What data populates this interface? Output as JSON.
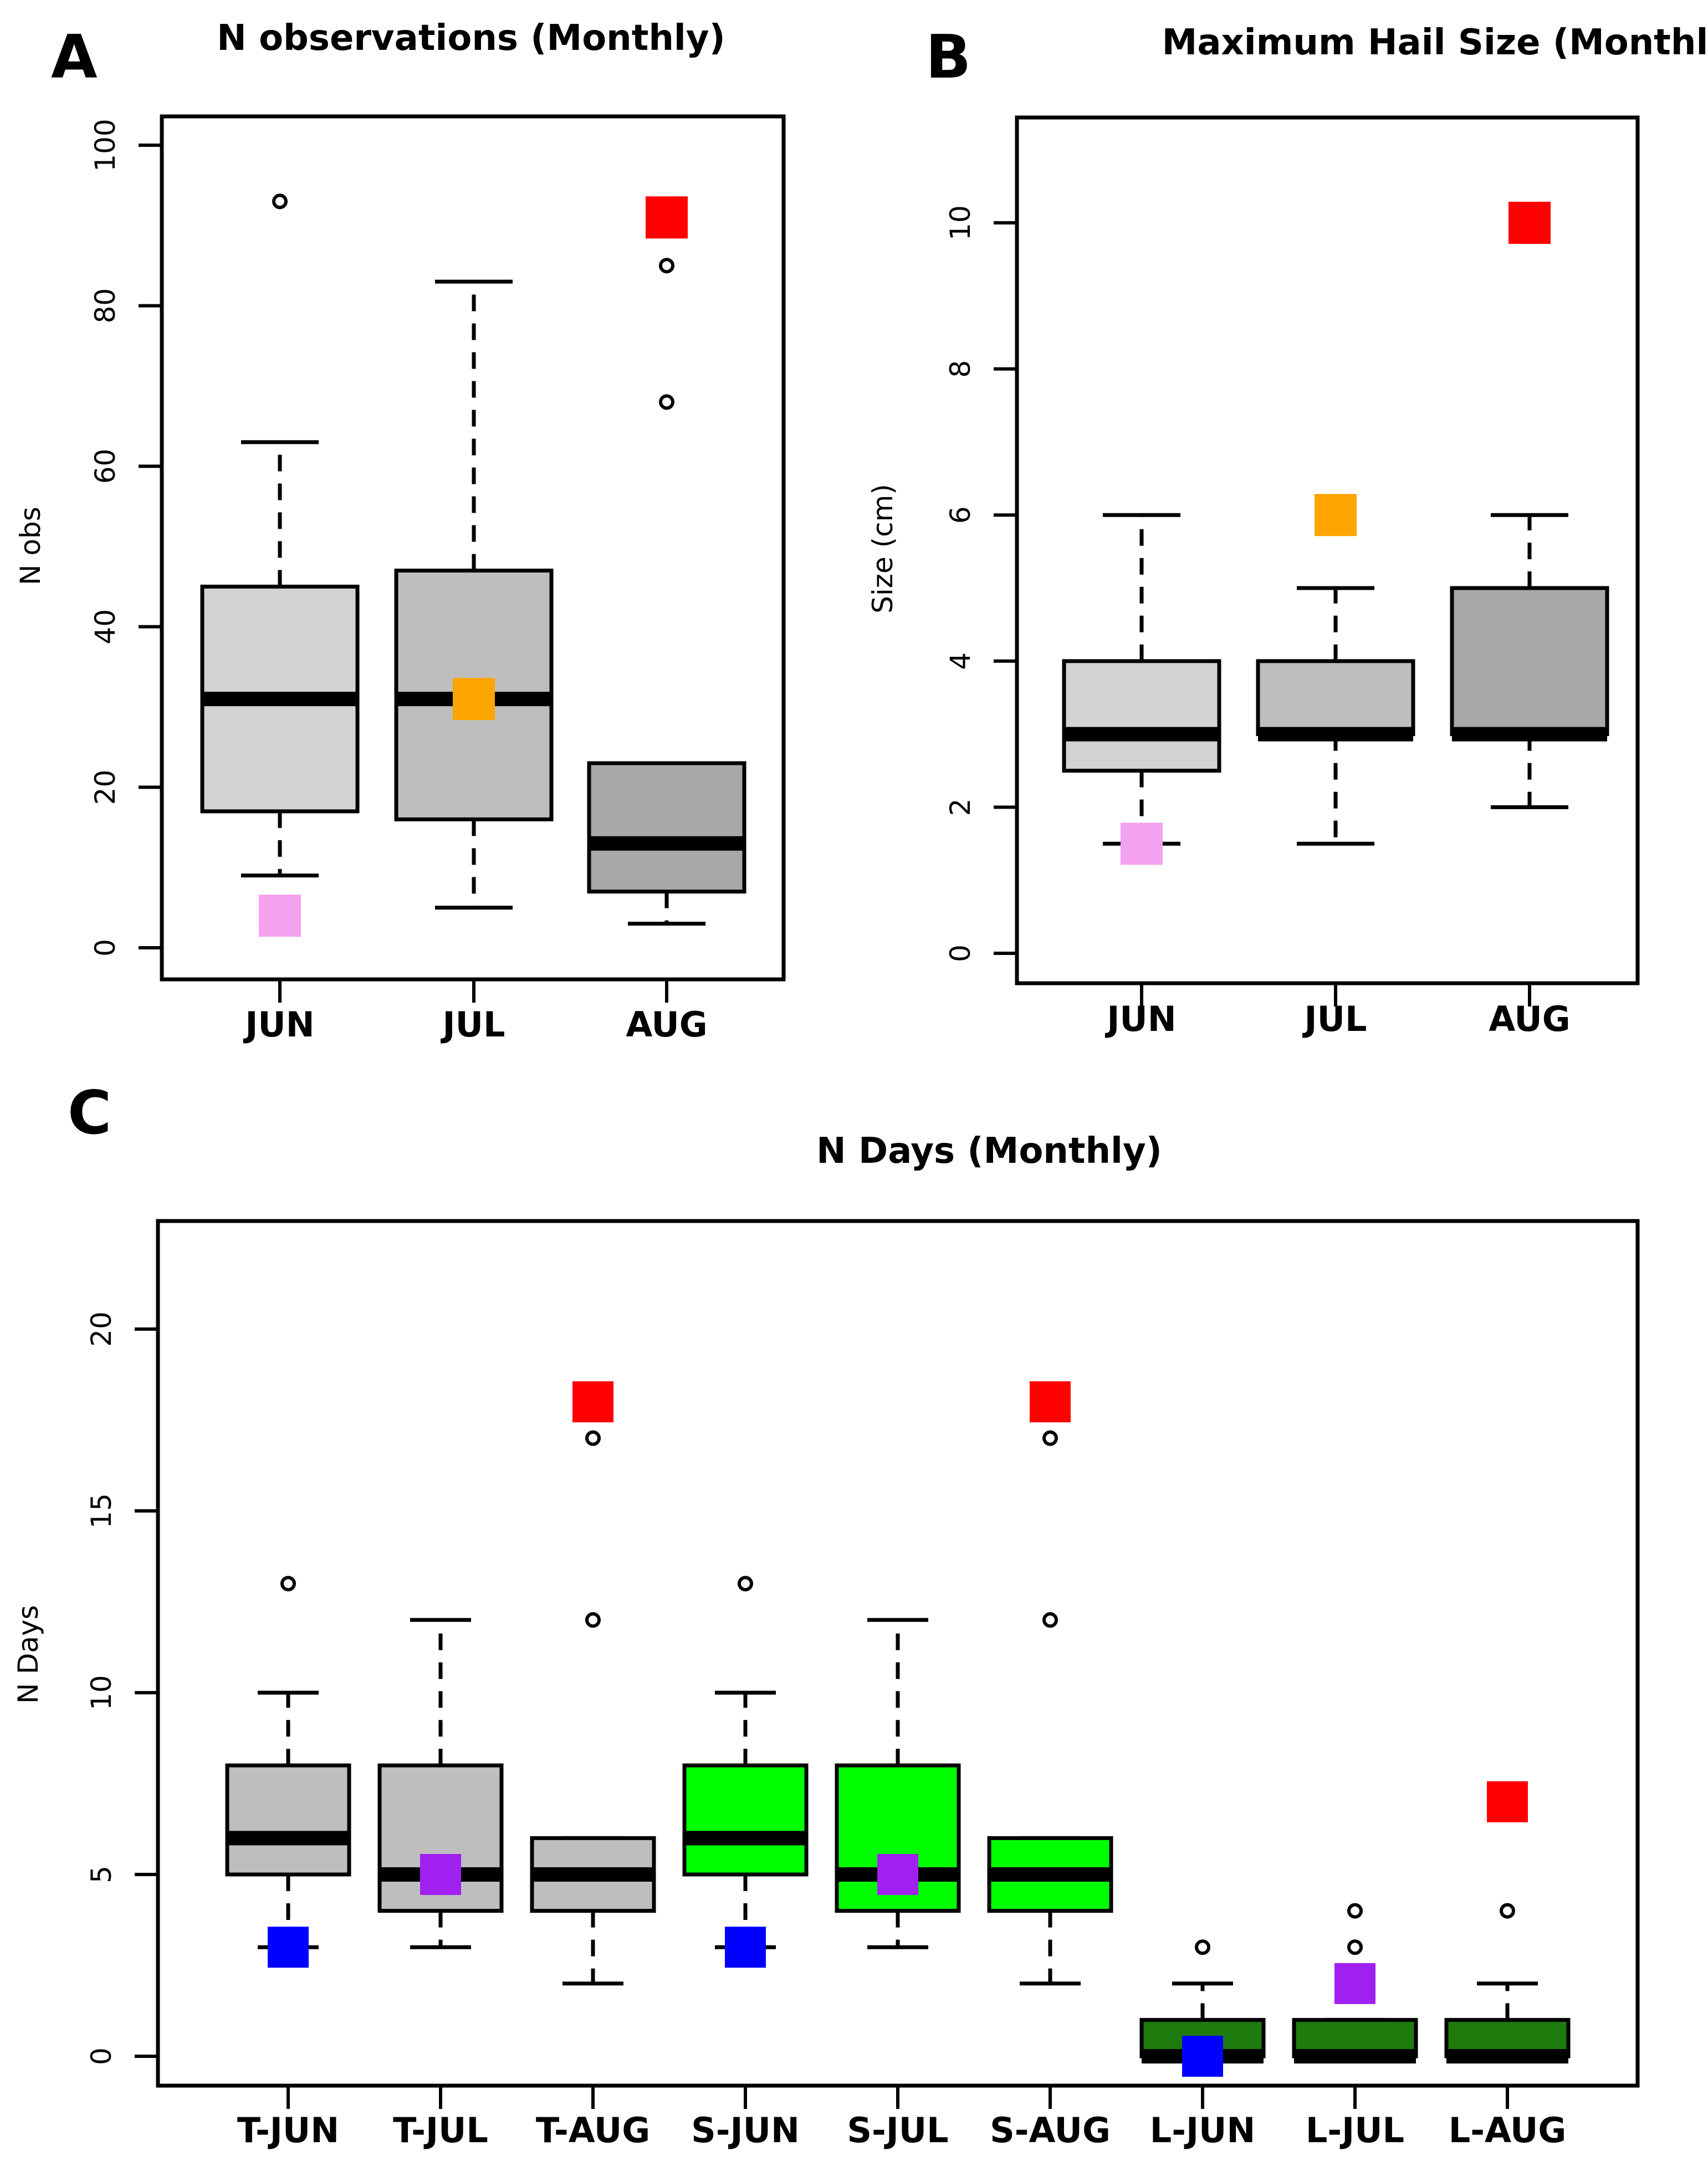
{
  "chart_data": [
    {
      "panel": "A",
      "type": "boxplot",
      "title": "N observations (Monthly)",
      "xlabel": "",
      "ylabel": "N obs",
      "ylim": [
        0,
        100
      ],
      "yticks": [
        0,
        20,
        40,
        60,
        80,
        100
      ],
      "categories": [
        "JUN",
        "JUL",
        "AUG"
      ],
      "boxes": [
        {
          "label": "JUN",
          "fill": "#d3d3d3",
          "whisker_low": 9,
          "q1": 17,
          "median": 31,
          "q3": 45,
          "whisker_high": 63,
          "outliers": [
            93
          ]
        },
        {
          "label": "JUL",
          "fill": "#bebebe",
          "whisker_low": 5,
          "q1": 16,
          "median": 31,
          "q3": 47,
          "whisker_high": 83,
          "outliers": []
        },
        {
          "label": "AUG",
          "fill": "#a8a8a8",
          "whisker_low": 3,
          "q1": 7,
          "median": 13,
          "q3": 23,
          "whisker_high": 23,
          "outliers": [
            68,
            85
          ]
        }
      ],
      "markers": [
        {
          "category": "JUN",
          "value": 4,
          "color": "#f4a1f0"
        },
        {
          "category": "JUL",
          "value": 31,
          "color": "#ffa500"
        },
        {
          "category": "AUG",
          "value": 91,
          "color": "#ff0000"
        }
      ]
    },
    {
      "panel": "B",
      "type": "boxplot",
      "title": "Maximum Hail Size (Monthly)",
      "xlabel": "",
      "ylabel": "Size (cm)",
      "ylim": [
        0,
        11
      ],
      "yticks": [
        0,
        2,
        4,
        6,
        8,
        10
      ],
      "categories": [
        "JUN",
        "JUL",
        "AUG"
      ],
      "boxes": [
        {
          "label": "JUN",
          "fill": "#d3d3d3",
          "whisker_low": 1.5,
          "q1": 2.5,
          "median": 3,
          "q3": 4,
          "whisker_high": 6,
          "outliers": []
        },
        {
          "label": "JUL",
          "fill": "#bebebe",
          "whisker_low": 1.5,
          "q1": 3,
          "median": 3,
          "q3": 4,
          "whisker_high": 5,
          "outliers": []
        },
        {
          "label": "AUG",
          "fill": "#a8a8a8",
          "whisker_low": 2,
          "q1": 3,
          "median": 3,
          "q3": 5,
          "whisker_high": 6,
          "outliers": []
        }
      ],
      "markers": [
        {
          "category": "JUN",
          "value": 1.5,
          "color": "#f4a1f0"
        },
        {
          "category": "JUL",
          "value": 6,
          "color": "#ffa500"
        },
        {
          "category": "AUG",
          "value": 10,
          "color": "#ff0000"
        }
      ]
    },
    {
      "panel": "C",
      "type": "boxplot",
      "title": "N Days (Monthly)",
      "xlabel": "",
      "ylabel": "N Days",
      "ylim": [
        0,
        22
      ],
      "yticks": [
        0,
        5,
        10,
        15,
        20
      ],
      "categories": [
        "T-JUN",
        "T-JUL",
        "T-AUG",
        "S-JUN",
        "S-JUL",
        "S-AUG",
        "L-JUN",
        "L-JUL",
        "L-AUG"
      ],
      "boxes": [
        {
          "label": "T-JUN",
          "fill": "#bebebe",
          "whisker_low": 3,
          "q1": 5,
          "median": 6,
          "q3": 8,
          "whisker_high": 10,
          "outliers": [
            13
          ]
        },
        {
          "label": "T-JUL",
          "fill": "#bebebe",
          "whisker_low": 3,
          "q1": 4,
          "median": 5,
          "q3": 8,
          "whisker_high": 12,
          "outliers": []
        },
        {
          "label": "T-AUG",
          "fill": "#bebebe",
          "whisker_low": 2,
          "q1": 4,
          "median": 5,
          "q3": 6,
          "whisker_high": 6,
          "outliers": [
            12,
            17
          ]
        },
        {
          "label": "S-JUN",
          "fill": "#00ff00",
          "whisker_low": 3,
          "q1": 5,
          "median": 6,
          "q3": 8,
          "whisker_high": 10,
          "outliers": [
            13
          ]
        },
        {
          "label": "S-JUL",
          "fill": "#00ff00",
          "whisker_low": 3,
          "q1": 4,
          "median": 5,
          "q3": 8,
          "whisker_high": 12,
          "outliers": []
        },
        {
          "label": "S-AUG",
          "fill": "#00ff00",
          "whisker_low": 2,
          "q1": 4,
          "median": 5,
          "q3": 6,
          "whisker_high": 6,
          "outliers": [
            12,
            17
          ]
        },
        {
          "label": "L-JUN",
          "fill": "#1e7b0e",
          "whisker_low": 0,
          "q1": 0,
          "median": 0,
          "q3": 1,
          "whisker_high": 2,
          "outliers": [
            3
          ]
        },
        {
          "label": "L-JUL",
          "fill": "#1e7b0e",
          "whisker_low": 0,
          "q1": 0,
          "median": 0,
          "q3": 1,
          "whisker_high": 1,
          "outliers": [
            3,
            4
          ]
        },
        {
          "label": "L-AUG",
          "fill": "#1e7b0e",
          "whisker_low": 0,
          "q1": 0,
          "median": 0,
          "q3": 1,
          "whisker_high": 2,
          "outliers": [
            4
          ]
        }
      ],
      "markers": [
        {
          "category": "T-JUN",
          "value": 3,
          "color": "#0000ff"
        },
        {
          "category": "T-JUL",
          "value": 5,
          "color": "#a020f0"
        },
        {
          "category": "T-AUG",
          "value": 18,
          "color": "#ff0000"
        },
        {
          "category": "S-JUN",
          "value": 3,
          "color": "#0000ff"
        },
        {
          "category": "S-JUL",
          "value": 5,
          "color": "#a020f0"
        },
        {
          "category": "S-AUG",
          "value": 18,
          "color": "#ff0000"
        },
        {
          "category": "L-JUN",
          "value": 0,
          "color": "#0000ff"
        },
        {
          "category": "L-JUL",
          "value": 2,
          "color": "#a020f0"
        },
        {
          "category": "L-AUG",
          "value": 7,
          "color": "#ff0000"
        }
      ]
    }
  ]
}
